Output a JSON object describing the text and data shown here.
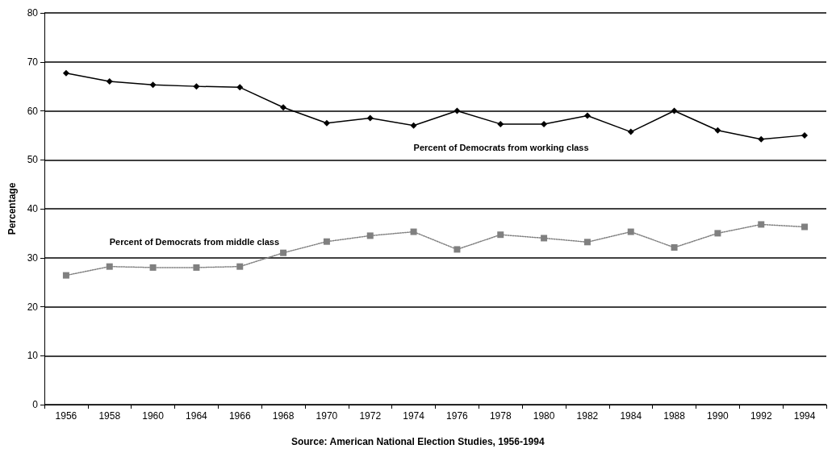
{
  "chart_data": {
    "type": "line",
    "categories": [
      "1956",
      "1958",
      "1960",
      "1964",
      "1966",
      "1968",
      "1970",
      "1972",
      "1974",
      "1976",
      "1978",
      "1980",
      "1982",
      "1984",
      "1988",
      "1990",
      "1992",
      "1994"
    ],
    "series": [
      {
        "name": "Percent of Democrats from working class",
        "color": "#000000",
        "marker": "diamond",
        "line_style": "solid",
        "values": [
          67.7,
          66,
          65.3,
          65,
          64.8,
          60.7,
          57.5,
          58.5,
          57,
          60,
          57.3,
          57.3,
          59,
          55.7,
          60,
          56,
          54.2,
          55
        ]
      },
      {
        "name": "Percent of Democrats from middle class",
        "color": "#808080",
        "marker": "square",
        "line_style": "dotted",
        "values": [
          26.4,
          28.2,
          28,
          28,
          28.2,
          31,
          33.3,
          34.5,
          35.3,
          31.7,
          34.7,
          34,
          33.2,
          35.3,
          32.1,
          35,
          36.8,
          36.3
        ]
      }
    ],
    "ylabel": "Percentage",
    "ylim": [
      0,
      80
    ],
    "yticks": [
      0,
      10,
      20,
      30,
      40,
      50,
      60,
      70,
      80
    ],
    "grid": "y",
    "legend": false,
    "annotations": [
      "Source: American National Election Studies, 1956-1994"
    ]
  }
}
